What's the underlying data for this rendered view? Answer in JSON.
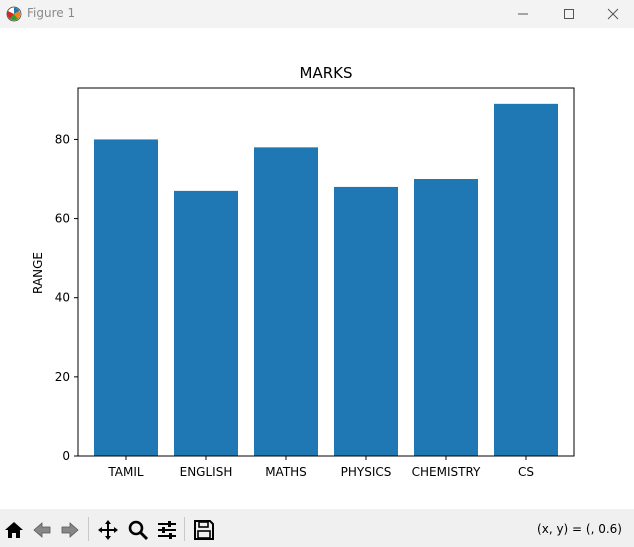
{
  "window": {
    "title": "Figure 1",
    "icon": "matplotlib-icon",
    "controls": [
      "minimize-icon",
      "maximize-icon",
      "close-icon"
    ]
  },
  "chart_data": {
    "type": "bar",
    "title": "MARKS",
    "xlabel": "",
    "ylabel": "RANGE",
    "categories": [
      "TAMIL",
      "ENGLISH",
      "MATHS",
      "PHYSICS",
      "CHEMISTRY",
      "CS"
    ],
    "values": [
      80,
      67,
      78,
      68,
      70,
      89
    ],
    "ylim": [
      0,
      93
    ],
    "yticks": [
      0,
      20,
      40,
      60,
      80
    ],
    "bar_color": "#1f77b4",
    "grid": false
  },
  "toolbar": {
    "tools": [
      "home-icon",
      "back-icon",
      "forward-icon",
      "pan-icon",
      "zoom-icon",
      "configure-subplots-icon",
      "save-icon"
    ],
    "coords_text": "(x, y) = (, 0.6)"
  }
}
